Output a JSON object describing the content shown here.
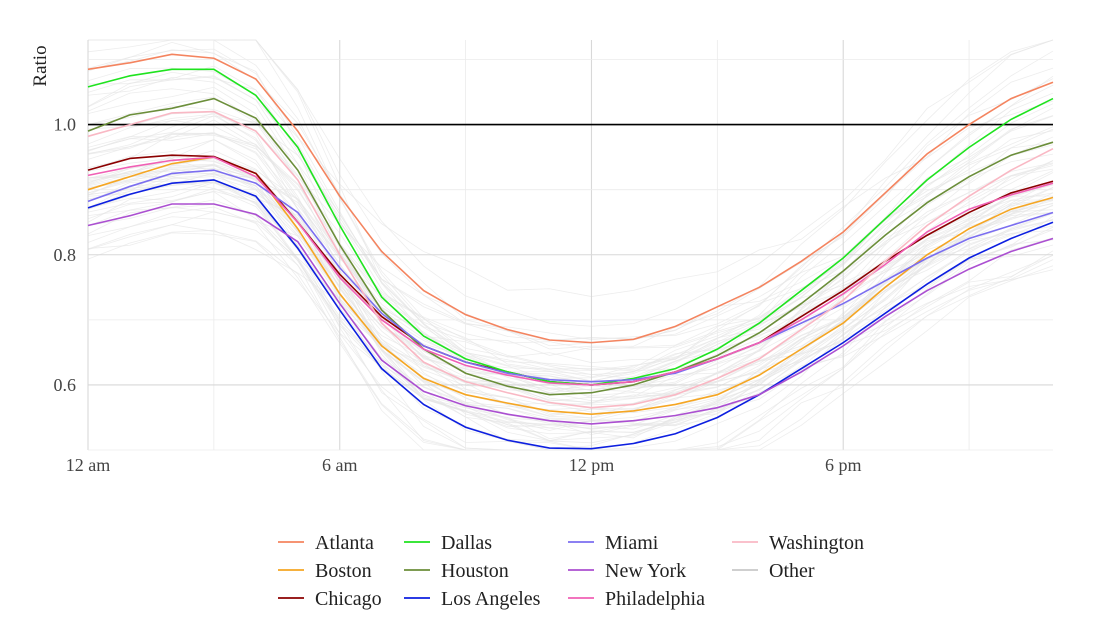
{
  "chart_data": {
    "type": "line",
    "ylabel": "Ratio",
    "xlabel": "",
    "x_ticks": [
      "12 am",
      "6 am",
      "12 pm",
      "6 pm"
    ],
    "x_tick_hours": [
      0,
      6,
      12,
      18
    ],
    "y_ticks": [
      "0.6",
      "0.8",
      "1.0"
    ],
    "y_tick_values": [
      0.6,
      0.8,
      1.0
    ],
    "xlim": [
      0,
      23
    ],
    "ylim": [
      0.5,
      1.13
    ],
    "reference_line": 1.0,
    "x": [
      0,
      1,
      2,
      3,
      4,
      5,
      6,
      7,
      8,
      9,
      10,
      11,
      12,
      13,
      14,
      15,
      16,
      17,
      18,
      19,
      20,
      21,
      22,
      23
    ],
    "grid": true,
    "legend_position": "bottom",
    "series": [
      {
        "name": "Atlanta",
        "color": "#f4845f",
        "values": [
          1.085,
          1.095,
          1.108,
          1.102,
          1.07,
          0.99,
          0.89,
          0.805,
          0.745,
          0.708,
          0.685,
          0.669,
          0.665,
          0.67,
          0.69,
          0.72,
          0.75,
          0.79,
          0.835,
          0.895,
          0.955,
          1.0,
          1.04,
          1.065
        ]
      },
      {
        "name": "Boston",
        "color": "#f5a623",
        "values": [
          0.9,
          0.92,
          0.94,
          0.95,
          0.925,
          0.84,
          0.74,
          0.66,
          0.61,
          0.585,
          0.572,
          0.56,
          0.555,
          0.56,
          0.57,
          0.585,
          0.615,
          0.655,
          0.695,
          0.75,
          0.8,
          0.84,
          0.87,
          0.888
        ]
      },
      {
        "name": "Chicago",
        "color": "#8b0000",
        "values": [
          0.93,
          0.948,
          0.953,
          0.951,
          0.925,
          0.85,
          0.77,
          0.705,
          0.66,
          0.635,
          0.62,
          0.605,
          0.6,
          0.605,
          0.62,
          0.64,
          0.665,
          0.705,
          0.745,
          0.79,
          0.83,
          0.865,
          0.895,
          0.913
        ]
      },
      {
        "name": "Dallas",
        "color": "#1fe31f",
        "values": [
          1.058,
          1.075,
          1.085,
          1.085,
          1.045,
          0.965,
          0.845,
          0.735,
          0.675,
          0.64,
          0.62,
          0.605,
          0.6,
          0.61,
          0.625,
          0.655,
          0.695,
          0.745,
          0.795,
          0.855,
          0.915,
          0.965,
          1.008,
          1.04
        ]
      },
      {
        "name": "Houston",
        "color": "#6b8e3a",
        "values": [
          0.99,
          1.015,
          1.025,
          1.04,
          1.01,
          0.93,
          0.815,
          0.715,
          0.655,
          0.618,
          0.598,
          0.585,
          0.588,
          0.6,
          0.62,
          0.645,
          0.68,
          0.725,
          0.775,
          0.83,
          0.88,
          0.92,
          0.953,
          0.973
        ]
      },
      {
        "name": "Los Angeles",
        "color": "#0d1fe0",
        "values": [
          0.872,
          0.893,
          0.91,
          0.915,
          0.89,
          0.81,
          0.715,
          0.625,
          0.57,
          0.535,
          0.515,
          0.503,
          0.502,
          0.51,
          0.525,
          0.55,
          0.585,
          0.625,
          0.665,
          0.71,
          0.755,
          0.795,
          0.825,
          0.85
        ]
      },
      {
        "name": "Miami",
        "color": "#7b6ef0",
        "values": [
          0.882,
          0.905,
          0.925,
          0.93,
          0.91,
          0.865,
          0.78,
          0.71,
          0.66,
          0.635,
          0.618,
          0.608,
          0.605,
          0.608,
          0.618,
          0.64,
          0.665,
          0.695,
          0.725,
          0.76,
          0.795,
          0.825,
          0.845,
          0.865
        ]
      },
      {
        "name": "New York",
        "color": "#ab4fd1",
        "values": [
          0.845,
          0.86,
          0.878,
          0.878,
          0.862,
          0.82,
          0.725,
          0.638,
          0.59,
          0.568,
          0.555,
          0.545,
          0.54,
          0.545,
          0.553,
          0.565,
          0.585,
          0.62,
          0.66,
          0.705,
          0.745,
          0.778,
          0.805,
          0.825
        ]
      },
      {
        "name": "Philadelphia",
        "color": "#f060b5",
        "values": [
          0.922,
          0.935,
          0.945,
          0.95,
          0.92,
          0.85,
          0.765,
          0.7,
          0.655,
          0.63,
          0.615,
          0.603,
          0.6,
          0.605,
          0.62,
          0.64,
          0.665,
          0.7,
          0.74,
          0.785,
          0.835,
          0.87,
          0.892,
          0.91
        ]
      },
      {
        "name": "Washington",
        "color": "#f9b8c4",
        "values": [
          0.982,
          1.0,
          1.018,
          1.02,
          0.99,
          0.915,
          0.8,
          0.695,
          0.635,
          0.605,
          0.588,
          0.573,
          0.565,
          0.57,
          0.585,
          0.61,
          0.64,
          0.685,
          0.73,
          0.79,
          0.845,
          0.89,
          0.93,
          0.963
        ]
      },
      {
        "name": "Other",
        "color": "#c8c8c8"
      }
    ]
  }
}
